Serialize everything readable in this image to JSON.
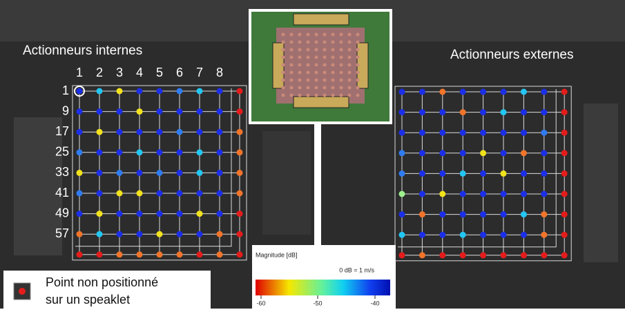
{
  "left": {
    "title": "Actionneurs internes",
    "column_labels": [
      "1",
      "2",
      "3",
      "4",
      "5",
      "6",
      "7",
      "8"
    ],
    "row_labels": [
      "1",
      "9",
      "17",
      "25",
      "33",
      "41",
      "49",
      "57"
    ],
    "dot_colors": [
      [
        "#1c2fe8",
        "#22c6f2",
        "#f2e21c",
        "#1c2fe8",
        "#1c2fe8",
        "#2f7bf2",
        "#22c6f2",
        "#1c2fe8",
        "#e41c1c"
      ],
      [
        "#1c2fe8",
        "#1c2fe8",
        "#1c2fe8",
        "#f2e21c",
        "#1c2fe8",
        "#1c2fe8",
        "#1c2fe8",
        "#1c2fe8",
        "#e41c1c"
      ],
      [
        "#1c2fe8",
        "#f2e21c",
        "#1c2fe8",
        "#1c2fe8",
        "#1c2fe8",
        "#2f7bf2",
        "#1c2fe8",
        "#1c2fe8",
        "#f2742a"
      ],
      [
        "#2f7bf2",
        "#1c2fe8",
        "#1c2fe8",
        "#22c6f2",
        "#1c2fe8",
        "#1c2fe8",
        "#22c6f2",
        "#1c2fe8",
        "#f2742a"
      ],
      [
        "#f2e21c",
        "#1c2fe8",
        "#2f7bf2",
        "#1c2fe8",
        "#2f7bf2",
        "#1c2fe8",
        "#22c6f2",
        "#1c2fe8",
        "#f2742a"
      ],
      [
        "#2f7bf2",
        "#1c2fe8",
        "#f2e21c",
        "#f2e21c",
        "#1c2fe8",
        "#1c2fe8",
        "#1c2fe8",
        "#1c2fe8",
        "#f2742a"
      ],
      [
        "#1c2fe8",
        "#f2e21c",
        "#1c2fe8",
        "#1c2fe8",
        "#1c2fe8",
        "#1c2fe8",
        "#f2e21c",
        "#1c2fe8",
        "#e41c1c"
      ],
      [
        "#f2742a",
        "#22c6f2",
        "#1c2fe8",
        "#1c2fe8",
        "#f2e21c",
        "#1c2fe8",
        "#1c2fe8",
        "#f2742a",
        "#e41c1c"
      ],
      [
        "#e41c1c",
        "#e41c1c",
        "#f2742a",
        "#f2742a",
        "#f2742a",
        "#f2742a",
        "#e41c1c",
        "#f2742a",
        "#e41c1c"
      ]
    ]
  },
  "right": {
    "title": "Actionneurs externes",
    "dot_colors": [
      [
        "#1c2fe8",
        "#1c2fe8",
        "#f2742a",
        "#1c2fe8",
        "#1c2fe8",
        "#1c2fe8",
        "#22c6f2",
        "#1c2fe8",
        "#e41c1c"
      ],
      [
        "#1c2fe8",
        "#1c2fe8",
        "#1c2fe8",
        "#f2742a",
        "#1c2fe8",
        "#22c6f2",
        "#1c2fe8",
        "#1c2fe8",
        "#e41c1c"
      ],
      [
        "#1c2fe8",
        "#1c2fe8",
        "#1c2fe8",
        "#1c2fe8",
        "#1c2fe8",
        "#1c2fe8",
        "#1c2fe8",
        "#2f7bf2",
        "#e41c1c"
      ],
      [
        "#2f7bf2",
        "#1c2fe8",
        "#1c2fe8",
        "#1c2fe8",
        "#f2e21c",
        "#1c2fe8",
        "#f2742a",
        "#1c2fe8",
        "#e41c1c"
      ],
      [
        "#2f7bf2",
        "#1c2fe8",
        "#1c2fe8",
        "#22c6f2",
        "#1c2fe8",
        "#f2e21c",
        "#1c2fe8",
        "#1c2fe8",
        "#e41c1c"
      ],
      [
        "#9cf08c",
        "#1c2fe8",
        "#f2e21c",
        "#1c2fe8",
        "#1c2fe8",
        "#1c2fe8",
        "#1c2fe8",
        "#1c2fe8",
        "#e41c1c"
      ],
      [
        "#1c2fe8",
        "#f2742a",
        "#1c2fe8",
        "#1c2fe8",
        "#1c2fe8",
        "#1c2fe8",
        "#22c6f2",
        "#f2742a",
        "#e41c1c"
      ],
      [
        "#22c6f2",
        "#1c2fe8",
        "#1c2fe8",
        "#22c6f2",
        "#1c2fe8",
        "#1c2fe8",
        "#1c2fe8",
        "#f2742a",
        "#e41c1c"
      ],
      [
        "#e41c1c",
        "#f2742a",
        "#e41c1c",
        "#e41c1c",
        "#e41c1c",
        "#e41c1c",
        "#e41c1c",
        "#e41c1c",
        "#e41c1c"
      ]
    ]
  },
  "colorbar": {
    "title": "Magnitude [dB]",
    "reference": "0 dB = 1 m/s",
    "ticks": [
      "-60",
      "-50",
      "-40"
    ]
  },
  "legend": {
    "text_lines": [
      "Point non positionné",
      "sur un speaklet"
    ]
  }
}
